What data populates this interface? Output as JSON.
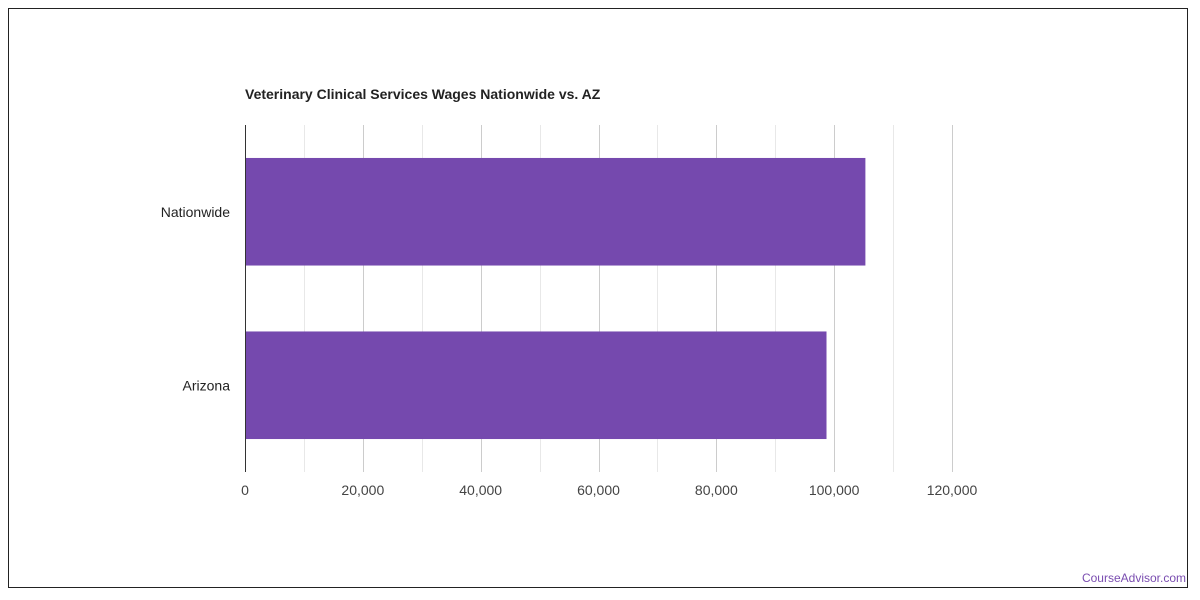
{
  "chart_data": {
    "type": "bar",
    "orientation": "horizontal",
    "title": "Veterinary Clinical Services Wages Nationwide vs. AZ",
    "categories": [
      "Nationwide",
      "Arizona"
    ],
    "values": [
      105300,
      98700
    ],
    "xlim": [
      0,
      120000
    ],
    "x_ticks": [
      "0",
      "20,000",
      "40,000",
      "60,000",
      "80,000",
      "100,000",
      "120,000"
    ],
    "x_tick_values": [
      0,
      20000,
      40000,
      60000,
      80000,
      100000,
      120000
    ],
    "grid": true,
    "bar_color": "#7549ae"
  },
  "source_label": "CourseAdvisor.com"
}
